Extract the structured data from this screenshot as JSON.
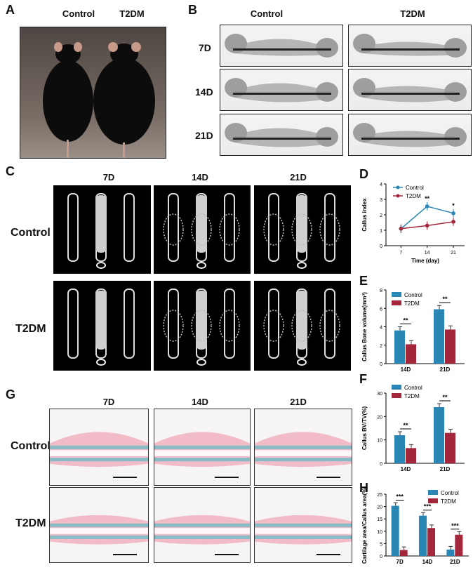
{
  "panels": {
    "A": "A",
    "B": "B",
    "C": "C",
    "D": "D",
    "E": "E",
    "F": "F",
    "G": "G",
    "H": "H"
  },
  "groups": {
    "control": "Control",
    "t2dm": "T2DM"
  },
  "days": [
    "7D",
    "14D",
    "21D"
  ],
  "chart_data": [
    {
      "panel": "D",
      "type": "line",
      "x": [
        7,
        14,
        21
      ],
      "xticks": [
        "7",
        "14",
        "21"
      ],
      "series": [
        {
          "name": "Control",
          "values": [
            1.1,
            2.55,
            2.1
          ],
          "color": "#2a87b5"
        },
        {
          "name": "T2DM",
          "values": [
            1.1,
            1.3,
            1.55
          ],
          "color": "#a3263a"
        }
      ],
      "xlabel": "Time (day)",
      "ylabel": "Callus index",
      "ylim": [
        0,
        4
      ],
      "yticks": [
        "0",
        "1",
        "2",
        "3",
        "4"
      ],
      "annotations": [
        "**",
        "*"
      ],
      "legend": "top-left"
    },
    {
      "panel": "E",
      "type": "bar",
      "categories": [
        "14D",
        "21D"
      ],
      "series": [
        {
          "name": "Control",
          "values": [
            3.6,
            5.9
          ],
          "color": "#2a87b5"
        },
        {
          "name": "T2DM",
          "values": [
            2.1,
            3.7
          ],
          "color": "#a3263a"
        }
      ],
      "ylabel": "Callus Bone volume(mm³)",
      "ylim": [
        0,
        8
      ],
      "yticks": [
        "0",
        "2",
        "4",
        "6",
        "8"
      ],
      "annotations": [
        "**",
        "**"
      ],
      "legend": "top-left"
    },
    {
      "panel": "F",
      "type": "bar",
      "categories": [
        "14D",
        "21D"
      ],
      "series": [
        {
          "name": "Control",
          "values": [
            12,
            24
          ],
          "color": "#2a87b5"
        },
        {
          "name": "T2DM",
          "values": [
            6.5,
            13
          ],
          "color": "#a3263a"
        }
      ],
      "ylabel": "Callus BV/TV(%)",
      "ylim": [
        0,
        30
      ],
      "yticks": [
        "0",
        "10",
        "20",
        "30"
      ],
      "annotations": [
        "**",
        "**"
      ],
      "legend": "top-left"
    },
    {
      "panel": "H",
      "type": "bar",
      "categories": [
        "7D",
        "14D",
        "21D"
      ],
      "series": [
        {
          "name": "Control",
          "values": [
            20.3,
            16.3,
            2.6
          ],
          "color": "#2a87b5"
        },
        {
          "name": "T2DM",
          "values": [
            2.4,
            11.3,
            8.6
          ],
          "color": "#a3263a"
        }
      ],
      "ylabel": "Cartilage area/Callus area(%)",
      "ylim": [
        0,
        25
      ],
      "yticks": [
        "0",
        "5",
        "10",
        "15",
        "20",
        "25"
      ],
      "annotations": [
        "***",
        "***",
        "***"
      ],
      "legend": "top-right"
    }
  ]
}
